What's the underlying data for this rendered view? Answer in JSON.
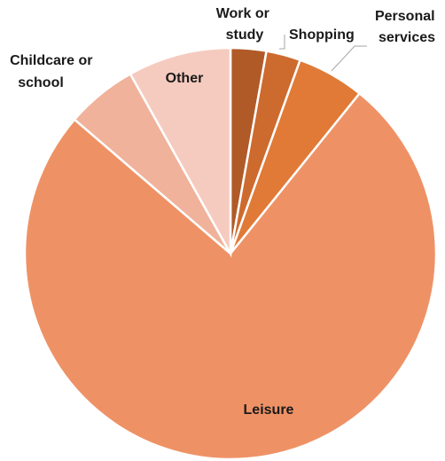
{
  "chart_data": {
    "type": "pie",
    "title": "",
    "legend": "none",
    "start_angle_deg": 0,
    "direction": "clockwise",
    "slices": [
      {
        "label": "Work or study",
        "value": 2.8,
        "color": "#b05a28"
      },
      {
        "label": "Shopping",
        "value": 2.7,
        "color": "#cd6a2e"
      },
      {
        "label": "Personal services",
        "value": 5.3,
        "color": "#e07a36"
      },
      {
        "label": "Leisure",
        "value": 75.5,
        "color": "#ee9266"
      },
      {
        "label": "Childcare or school",
        "value": 5.6,
        "color": "#f0b29a"
      },
      {
        "label": "Other",
        "value": 8.1,
        "color": "#f6cbbf"
      }
    ]
  }
}
